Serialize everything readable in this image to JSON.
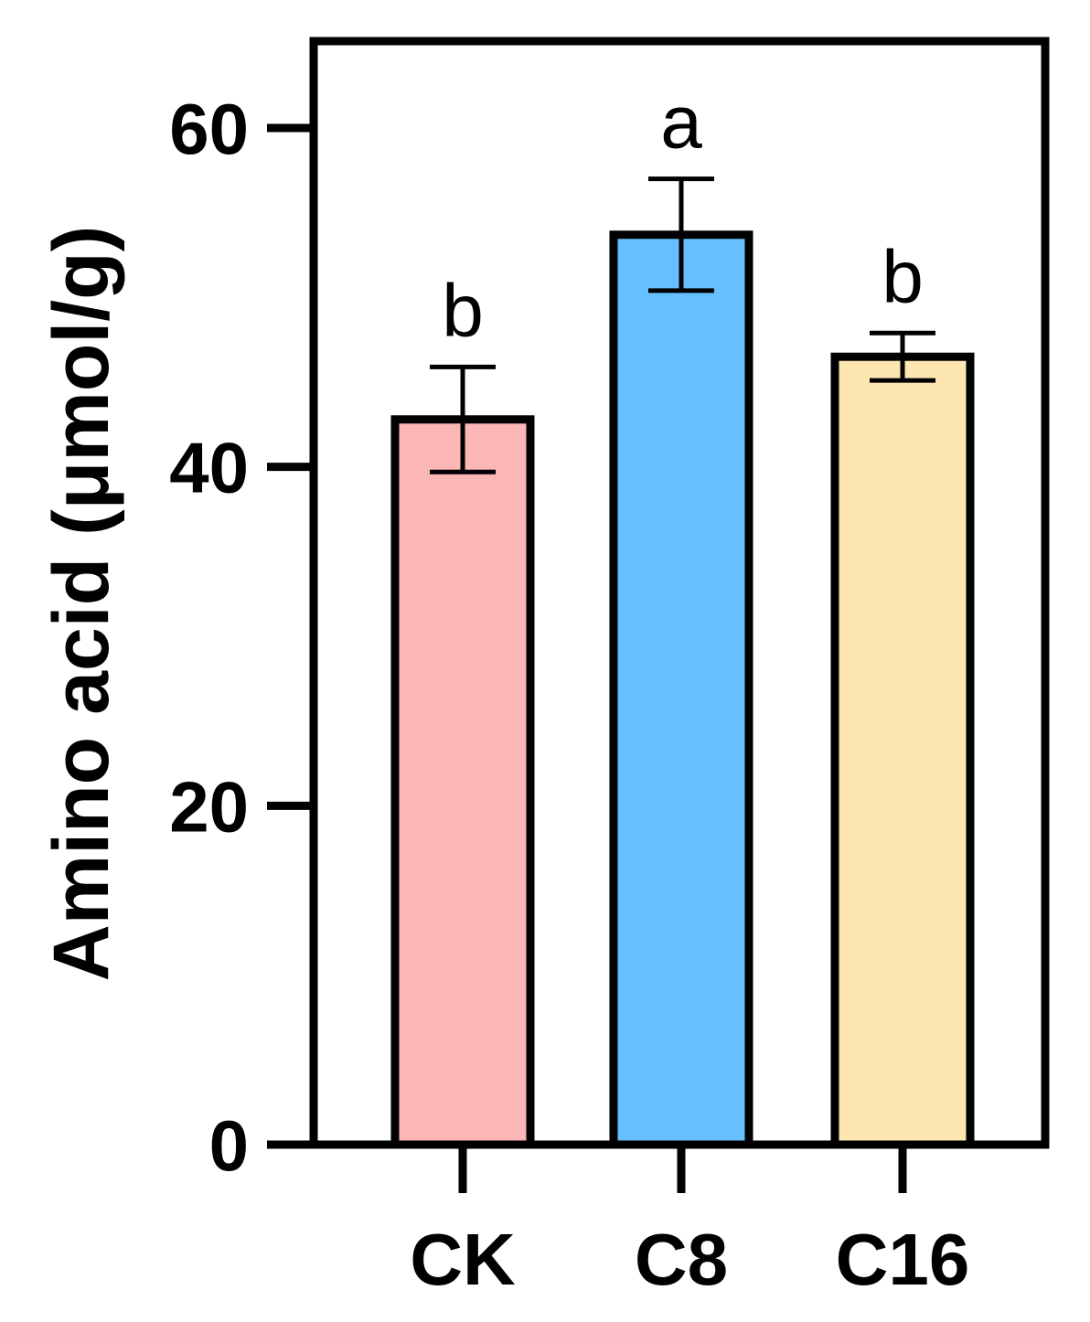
{
  "chart_data": {
    "type": "bar",
    "title": "",
    "xlabel": "",
    "ylabel": "Amino acid (μmol/g)",
    "ylim": [
      0,
      65
    ],
    "yticks": [
      0,
      20,
      40,
      60
    ],
    "ytick_labels": [
      "0",
      "20",
      "40",
      "60"
    ],
    "categories": [
      "CK",
      "C8",
      "C16"
    ],
    "values": [
      42.8,
      53.7,
      46.5
    ],
    "errors": [
      3.1,
      3.3,
      1.4
    ],
    "significance": [
      "b",
      "a",
      "b"
    ],
    "colors": [
      "#fbb6b6",
      "#66bfff",
      "#fde6b0"
    ],
    "grid": false,
    "legend": "none"
  }
}
